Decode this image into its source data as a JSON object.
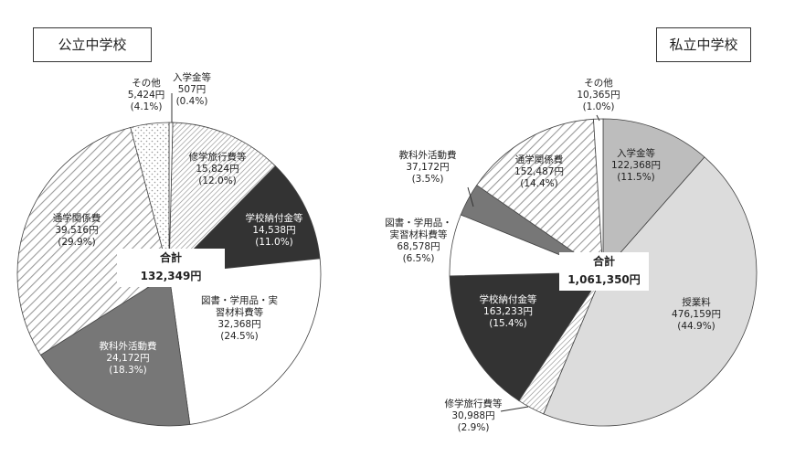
{
  "chart_data": [
    {
      "type": "pie",
      "title": "公立中学校",
      "total_label": "合計",
      "total_value": "132,349円",
      "slices": [
        {
          "name": "入学金等",
          "amount": "507円",
          "pct_label": "(0.4%)",
          "value": 0.4,
          "fill": "#ffffff"
        },
        {
          "name": "修学旅行費等",
          "amount": "15,824円",
          "pct_label": "(12.0%)",
          "value": 12.0,
          "fill": "url(#hatch-fine)"
        },
        {
          "name": "学校納付金等",
          "amount": "14,538円",
          "pct_label": "(11.0%)",
          "value": 11.0,
          "fill": "#333333"
        },
        {
          "name": "図書・学用品・実習材料費等",
          "amount": "32,368円",
          "pct_label": "(24.5%)",
          "value": 24.5,
          "fill": "#ffffff"
        },
        {
          "name": "教科外活動費",
          "amount": "24,172円",
          "pct_label": "(18.3%)",
          "value": 18.3,
          "fill": "#777777"
        },
        {
          "name": "通学関係費",
          "amount": "39,516円",
          "pct_label": "(29.9%)",
          "value": 29.9,
          "fill": "url(#hatch-wide)"
        },
        {
          "name": "その他",
          "amount": "5,424円",
          "pct_label": "(4.1%)",
          "value": 4.1,
          "fill": "url(#dots)"
        }
      ]
    },
    {
      "type": "pie",
      "title": "私立中学校",
      "total_label": "合計",
      "total_value": "1,061,350円",
      "slices": [
        {
          "name": "入学金等",
          "amount": "122,368円",
          "pct_label": "(11.5%)",
          "value": 11.5,
          "fill": "#bdbdbd"
        },
        {
          "name": "授業料",
          "amount": "476,159円",
          "pct_label": "(44.9%)",
          "value": 44.9,
          "fill": "#dcdcdc"
        },
        {
          "name": "修学旅行費等",
          "amount": "30,988円",
          "pct_label": "(2.9%)",
          "value": 2.9,
          "fill": "url(#hatch-fine)"
        },
        {
          "name": "学校納付金等",
          "amount": "163,233円",
          "pct_label": "(15.4%)",
          "value": 15.4,
          "fill": "#333333"
        },
        {
          "name": "図書・学用品・実習材料費等",
          "amount": "68,578円",
          "pct_label": "(6.5%)",
          "value": 6.5,
          "fill": "#ffffff"
        },
        {
          "name": "教科外活動費",
          "amount": "37,172円",
          "pct_label": "(3.5%)",
          "value": 3.5,
          "fill": "#777777"
        },
        {
          "name": "通学関係費",
          "amount": "152,487円",
          "pct_label": "(14.4%)",
          "value": 14.4,
          "fill": "url(#hatch-wide)"
        },
        {
          "name": "その他",
          "amount": "10,365円",
          "pct_label": "(1.0%)",
          "value": 1.0,
          "fill": "#ffffff"
        }
      ]
    }
  ]
}
